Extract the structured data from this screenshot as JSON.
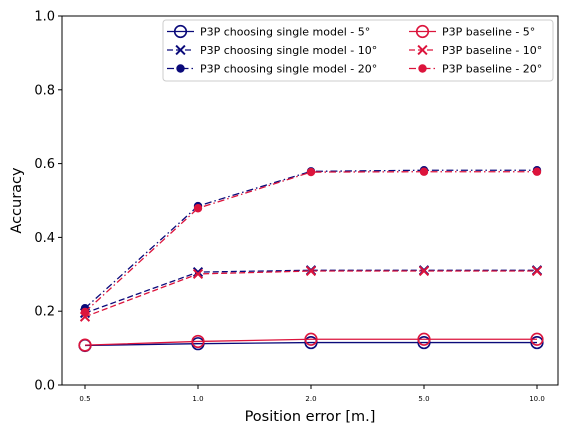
{
  "chart_data": {
    "type": "line",
    "title": "",
    "xlabel": "Position error [m.]",
    "ylabel": "Accuracy",
    "x_tick_labels": [
      "0.5",
      "1.0",
      "2.0",
      "5.0",
      "10.0"
    ],
    "y_tick_labels": [
      "0.0",
      "0.2",
      "0.4",
      "0.6",
      "0.8",
      "1.0"
    ],
    "ylim": [
      0,
      1
    ],
    "grid": false,
    "legend_position": "top-right",
    "legend_columns": 2,
    "series": [
      {
        "name": "P3P choosing single model - 5°",
        "color": "#0a0a7a",
        "linestyle": "solid",
        "marker": "open-circle",
        "values": [
          0.107,
          0.112,
          0.115,
          0.115,
          0.115
        ]
      },
      {
        "name": "P3P choosing single model - 10°",
        "color": "#0a0a7a",
        "linestyle": "dashed",
        "marker": "x",
        "values": [
          0.195,
          0.306,
          0.311,
          0.311,
          0.311
        ]
      },
      {
        "name": "P3P choosing single model - 20°",
        "color": "#0a0a7a",
        "linestyle": "dashdot",
        "marker": "filled-circle",
        "values": [
          0.208,
          0.485,
          0.579,
          0.582,
          0.582
        ]
      },
      {
        "name": "P3P baseline - 5°",
        "color": "#dc143c",
        "linestyle": "solid",
        "marker": "open-circle",
        "values": [
          0.108,
          0.118,
          0.124,
          0.124,
          0.124
        ]
      },
      {
        "name": "P3P baseline - 10°",
        "color": "#dc143c",
        "linestyle": "dashed",
        "marker": "x",
        "values": [
          0.185,
          0.301,
          0.309,
          0.309,
          0.309
        ]
      },
      {
        "name": "P3P baseline - 20°",
        "color": "#dc143c",
        "linestyle": "dashdot",
        "marker": "filled-circle",
        "values": [
          0.198,
          0.479,
          0.577,
          0.578,
          0.578
        ]
      }
    ]
  }
}
